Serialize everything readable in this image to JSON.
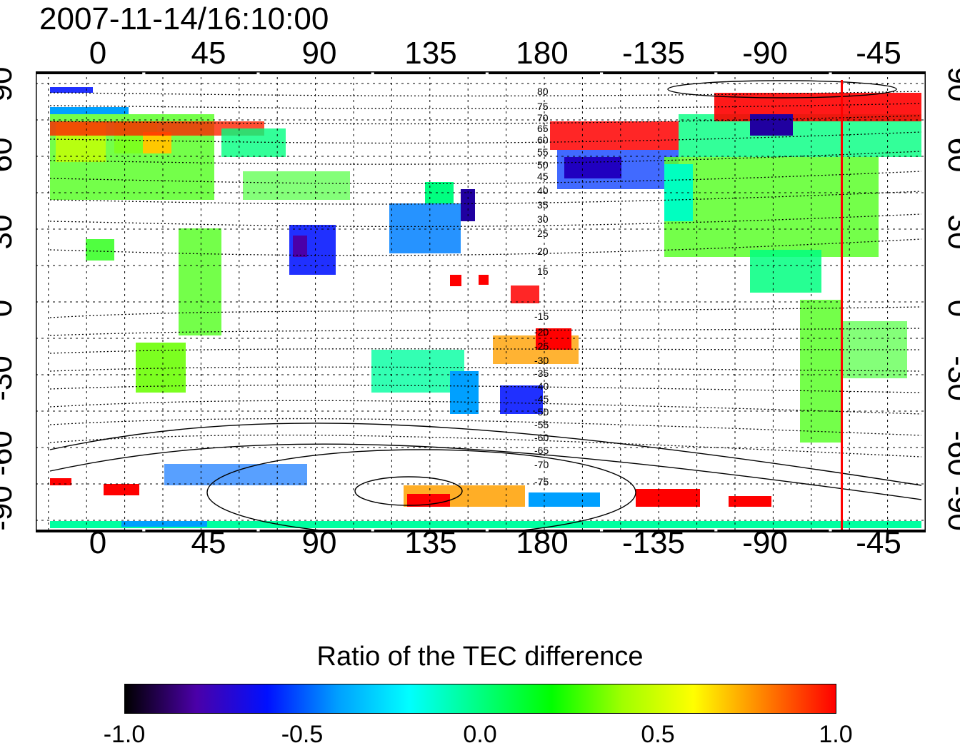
{
  "title": "2007-11-14/16:10:00",
  "axes": {
    "lon_ticks": [
      "0",
      "45",
      "90",
      "135",
      "180",
      "-135",
      "-90",
      "-45"
    ],
    "lat_ticks": [
      "90",
      "60",
      "30",
      "0",
      "-30",
      "-60",
      "-90"
    ],
    "lon_range": [
      -20,
      330
    ],
    "lat_range": [
      -95,
      95
    ]
  },
  "contour_labels": [
    "80",
    "75",
    "70",
    "65",
    "60",
    "55",
    "50",
    "45",
    "40",
    "35",
    "30",
    "25",
    "20",
    "15",
    "-15",
    "-20",
    "-25",
    "-30",
    "-35",
    "-40",
    "-45",
    "-50",
    "-55",
    "-60",
    "-65",
    "-70",
    "-75"
  ],
  "marker_longitude": -63,
  "colorbar": {
    "title": "Ratio of the TEC difference",
    "ticks": [
      "-1.0",
      "-0.5",
      "0.0",
      "0.5",
      "1.0"
    ],
    "range": [
      -1.0,
      1.0
    ],
    "colors": [
      "#000000",
      "#4b00a8",
      "#0010ff",
      "#00a0ff",
      "#00ffff",
      "#00ff80",
      "#00ff00",
      "#a0ff00",
      "#ffff00",
      "#ff8000",
      "#ff0000"
    ]
  },
  "colors": {
    "marker": "#ff0000",
    "grid": "#000000"
  }
}
